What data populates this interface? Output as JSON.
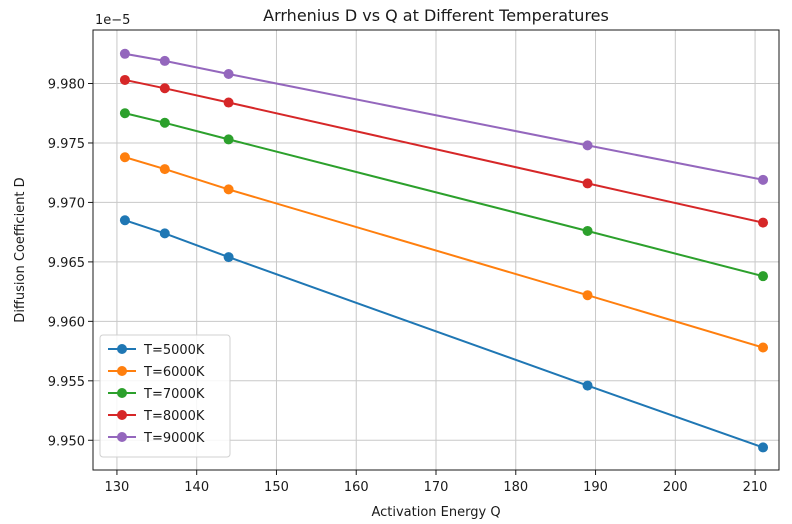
{
  "chart_data": {
    "type": "line",
    "title": "Arrhenius D vs Q at Different Temperatures",
    "xlabel": "Activation Energy Q",
    "ylabel": "Diffusion Coefficient D",
    "y_offset_label": "1e−5",
    "xlim": [
      127,
      213
    ],
    "ylim": [
      9.9475,
      9.9845
    ],
    "x_ticks": [
      130,
      140,
      150,
      160,
      170,
      180,
      190,
      200,
      210
    ],
    "y_ticks": [
      9.95,
      9.955,
      9.96,
      9.965,
      9.97,
      9.975,
      9.98
    ],
    "y_tick_labels": [
      "9.950",
      "9.955",
      "9.960",
      "9.965",
      "9.970",
      "9.975",
      "9.980"
    ],
    "grid": true,
    "legend_position": "lower-left",
    "x": [
      131,
      136,
      144,
      189,
      211
    ],
    "series": [
      {
        "name": "T=5000K",
        "color": "#1f77b4",
        "values": [
          9.9685,
          9.9674,
          9.9654,
          9.9546,
          9.9494
        ]
      },
      {
        "name": "T=6000K",
        "color": "#ff7f0e",
        "values": [
          9.9738,
          9.9728,
          9.9711,
          9.9622,
          9.9578
        ]
      },
      {
        "name": "T=7000K",
        "color": "#2ca02c",
        "values": [
          9.9775,
          9.9767,
          9.9753,
          9.9676,
          9.9638
        ]
      },
      {
        "name": "T=8000K",
        "color": "#d62728",
        "values": [
          9.9803,
          9.9796,
          9.9784,
          9.9716,
          9.9683
        ]
      },
      {
        "name": "T=9000K",
        "color": "#9467bd",
        "values": [
          9.9825,
          9.9819,
          9.9808,
          9.9748,
          9.9719
        ]
      }
    ]
  }
}
